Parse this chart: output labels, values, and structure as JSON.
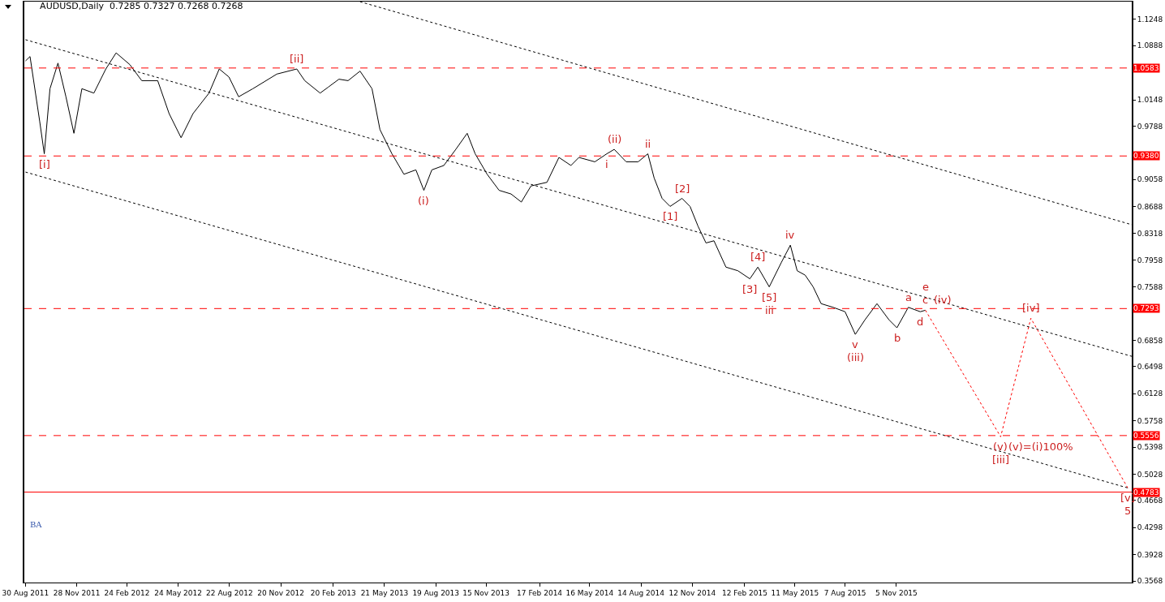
{
  "chart_data": {
    "type": "line",
    "title": "AUDUSD,Daily  0.7285 0.7327 0.7268 0.7268",
    "xlim": [
      "2011-08-28",
      "2016-12-22"
    ],
    "xticks": [
      {
        "value": "2011-08-30",
        "label": "30 Aug 2011"
      },
      {
        "value": "2011-11-28",
        "label": "28 Nov 2011"
      },
      {
        "value": "2012-02-24",
        "label": "24 Feb 2012"
      },
      {
        "value": "2012-05-24",
        "label": "24 May 2012"
      },
      {
        "value": "2012-08-22",
        "label": "22 Aug 2012"
      },
      {
        "value": "2012-11-20",
        "label": "20 Nov 2012"
      },
      {
        "value": "2013-02-20",
        "label": "20 Feb 2013"
      },
      {
        "value": "2013-05-21",
        "label": "21 May 2013"
      },
      {
        "value": "2013-08-19",
        "label": "19 Aug 2013"
      },
      {
        "value": "2013-11-15",
        "label": "15 Nov 2013"
      },
      {
        "value": "2014-02-17",
        "label": "17 Feb 2014"
      },
      {
        "value": "2014-05-16",
        "label": "16 May 2014"
      },
      {
        "value": "2014-08-14",
        "label": "14 Aug 2014"
      },
      {
        "value": "2014-11-12",
        "label": "12 Nov 2014"
      },
      {
        "value": "2015-02-12",
        "label": "12 Feb 2015"
      },
      {
        "value": "2015-05-11",
        "label": "11 May 2015"
      },
      {
        "value": "2015-08-07",
        "label": "7 Aug 2015"
      },
      {
        "value": "2015-11-05",
        "label": "5 Nov 2015"
      }
    ],
    "ylim": [
      0.3546,
      1.1491
    ],
    "yticks": [
      {
        "value": 1.1248,
        "label": "1.1248"
      },
      {
        "value": 1.0888,
        "label": "1.0888"
      },
      {
        "value": 1.0148,
        "label": "1.0148"
      },
      {
        "value": 0.9788,
        "label": "0.9788"
      },
      {
        "value": 0.9058,
        "label": "0.9058"
      },
      {
        "value": 0.8688,
        "label": "0.8688"
      },
      {
        "value": 0.8318,
        "label": "0.8318"
      },
      {
        "value": 0.7958,
        "label": "0.7958"
      },
      {
        "value": 0.7588,
        "label": "0.7588"
      },
      {
        "value": 0.6858,
        "label": "0.6858"
      },
      {
        "value": 0.6498,
        "label": "0.6498"
      },
      {
        "value": 0.6128,
        "label": "0.6128"
      },
      {
        "value": 0.5758,
        "label": "0.5758"
      },
      {
        "value": 0.5398,
        "label": "0.5398"
      },
      {
        "value": 0.5028,
        "label": "0.5028"
      },
      {
        "value": 0.4668,
        "label": "0.4668"
      },
      {
        "value": 0.4298,
        "label": "0.4298"
      },
      {
        "value": 0.3928,
        "label": "0.3928"
      },
      {
        "value": 0.3568,
        "label": "0.3568"
      }
    ],
    "grid": false,
    "series": [
      {
        "color": "#000000",
        "line_style": "solid",
        "x": [
          "2011-08-30",
          "2011-09-07",
          "2011-09-24",
          "2011-10-02",
          "2011-10-12",
          "2011-10-26",
          "2011-11-09",
          "2011-11-23",
          "2011-12-07",
          "2011-12-28",
          "2012-01-18",
          "2012-02-05",
          "2012-02-29",
          "2012-03-21",
          "2012-04-18",
          "2012-05-08",
          "2012-05-29",
          "2012-06-19",
          "2012-07-17",
          "2012-08-04",
          "2012-08-21",
          "2012-09-07",
          "2012-10-02",
          "2012-11-13",
          "2012-12-18",
          "2013-01-01",
          "2013-01-28",
          "2013-02-11",
          "2013-03-02",
          "2013-03-18",
          "2013-04-08",
          "2013-04-29",
          "2013-05-13",
          "2013-06-03",
          "2013-06-24",
          "2013-07-15",
          "2013-07-29",
          "2013-08-12",
          "2013-09-02",
          "2013-09-23",
          "2013-10-13",
          "2013-10-27",
          "2013-11-17",
          "2013-12-08",
          "2013-12-29",
          "2014-01-16",
          "2014-02-02",
          "2014-03-02",
          "2014-03-23",
          "2014-04-13",
          "2014-04-27",
          "2014-05-25",
          "2014-06-15",
          "2014-06-28",
          "2014-07-19",
          "2014-08-09",
          "2014-08-26",
          "2014-09-06",
          "2014-09-20",
          "2014-10-04",
          "2014-10-25",
          "2014-11-08",
          "2014-11-22",
          "2014-12-06",
          "2014-12-20",
          "2015-01-10",
          "2015-01-31",
          "2015-02-21",
          "2015-03-07",
          "2015-03-27",
          "2015-04-17",
          "2015-05-03",
          "2015-05-15",
          "2015-05-29",
          "2015-06-12",
          "2015-06-26",
          "2015-07-17",
          "2015-08-07",
          "2015-08-25",
          "2015-09-11",
          "2015-10-02",
          "2015-10-23",
          "2015-11-06",
          "2015-11-26",
          "2015-12-17",
          "2015-12-26"
        ],
        "values": [
          1.068,
          1.074,
          0.985,
          0.941,
          1.03,
          1.065,
          1.019,
          0.969,
          1.03,
          1.024,
          1.057,
          1.079,
          1.063,
          1.041,
          1.041,
          0.996,
          0.963,
          0.996,
          1.024,
          1.057,
          1.046,
          1.019,
          1.03,
          1.05,
          1.057,
          1.041,
          1.024,
          1.032,
          1.043,
          1.041,
          1.054,
          1.03,
          0.974,
          0.941,
          0.913,
          0.919,
          0.891,
          0.919,
          0.925,
          0.947,
          0.969,
          0.941,
          0.913,
          0.891,
          0.886,
          0.875,
          0.897,
          0.902,
          0.936,
          0.925,
          0.936,
          0.93,
          0.941,
          0.947,
          0.93,
          0.93,
          0.941,
          0.908,
          0.88,
          0.869,
          0.88,
          0.869,
          0.842,
          0.819,
          0.822,
          0.786,
          0.781,
          0.77,
          0.786,
          0.759,
          0.792,
          0.816,
          0.781,
          0.775,
          0.759,
          0.736,
          0.731,
          0.725,
          0.694,
          0.714,
          0.736,
          0.714,
          0.703,
          0.731,
          0.725,
          0.727
        ]
      },
      {
        "type": "line",
        "color": "#000000",
        "line_style": "dotted",
        "x": [
          "2013-04-08",
          "2016-12-22"
        ],
        "values": [
          1.149,
          0.844
        ]
      },
      {
        "type": "line",
        "color": "#000000",
        "line_style": "dotted",
        "x": [
          "2011-08-30",
          "2016-12-22"
        ],
        "values": [
          1.097,
          0.664
        ]
      },
      {
        "type": "line",
        "color": "#000000",
        "line_style": "dotted",
        "x": [
          "2011-08-30",
          "2016-12-15"
        ],
        "values": [
          0.916,
          0.484
        ]
      },
      {
        "type": "line",
        "color": "#ff0000",
        "line_style": "dotted",
        "x": [
          "2015-12-26",
          "2016-05-06",
          "2016-06-28",
          "2016-12-15"
        ],
        "values": [
          0.727,
          0.554,
          0.716,
          0.484
        ]
      }
    ],
    "ref_lines": [
      {
        "axis": "y",
        "value": 1.0583,
        "label": "1.0583",
        "color": "#ff0000",
        "line_style": "dashed"
      },
      {
        "axis": "y",
        "value": 0.938,
        "label": "0.9380",
        "color": "#ff0000",
        "line_style": "dashed"
      },
      {
        "axis": "y",
        "value": 0.7293,
        "label": "0.7293",
        "color": "#ff0000",
        "line_style": "dashed"
      },
      {
        "axis": "y",
        "value": 0.5556,
        "label": "0.5556",
        "color": "#ff0000",
        "line_style": "dashed"
      },
      {
        "axis": "y",
        "value": 0.4783,
        "label": "0.4783",
        "color": "#ff0000",
        "line_style": "solid"
      }
    ],
    "annotations": [
      {
        "text": "[i]",
        "x": "2011-10-02",
        "y": 0.941
      },
      {
        "text": "[ii]",
        "x": "2012-12-18",
        "y": 1.057
      },
      {
        "text": "(i)",
        "x": "2013-07-29",
        "y": 0.891
      },
      {
        "text": "(ii)",
        "x": "2014-06-28",
        "y": 0.947
      },
      {
        "text": "i",
        "x": "2014-06-15",
        "y": 0.941
      },
      {
        "text": "ii",
        "x": "2014-08-26",
        "y": 0.941
      },
      {
        "text": "[2]",
        "x": "2014-10-25",
        "y": 0.88
      },
      {
        "text": "[1]",
        "x": "2014-10-04",
        "y": 0.869
      },
      {
        "text": "[3]",
        "x": "2015-02-21",
        "y": 0.77
      },
      {
        "text": "[4]",
        "x": "2015-03-07",
        "y": 0.786
      },
      {
        "text": "[5]",
        "x": "2015-03-27",
        "y": 0.759
      },
      {
        "text": "iii",
        "x": "2015-03-27",
        "y": 0.759
      },
      {
        "text": "iv",
        "x": "2015-05-03",
        "y": 0.816
      },
      {
        "text": "a",
        "x": "2015-11-26",
        "y": 0.731
      },
      {
        "text": "c",
        "x": "2015-12-26",
        "y": 0.727
      },
      {
        "text": "e",
        "x": "2015-12-26",
        "y": 0.727
      },
      {
        "text": "(iv)",
        "x": "2015-12-26",
        "y": 0.727
      },
      {
        "text": "b",
        "x": "2015-11-06",
        "y": 0.703
      },
      {
        "text": "d",
        "x": "2015-12-17",
        "y": 0.725
      },
      {
        "text": "v",
        "x": "2015-08-25",
        "y": 0.694
      },
      {
        "text": "(iii)",
        "x": "2015-08-25",
        "y": 0.694
      },
      {
        "text": "[iv]",
        "x": "2016-06-28",
        "y": 0.716
      },
      {
        "text": "(v)",
        "x": "2016-05-06",
        "y": 0.554
      },
      {
        "text": "[iii]",
        "x": "2016-05-06",
        "y": 0.554
      },
      {
        "text": "(v)=(i)100%",
        "x": "2016-05-06",
        "y": 0.554
      },
      {
        "text": "[v]",
        "x": "2016-12-15",
        "y": 0.484
      },
      {
        "text": "5",
        "x": "2016-12-15",
        "y": 0.484
      },
      "BA"
    ]
  }
}
